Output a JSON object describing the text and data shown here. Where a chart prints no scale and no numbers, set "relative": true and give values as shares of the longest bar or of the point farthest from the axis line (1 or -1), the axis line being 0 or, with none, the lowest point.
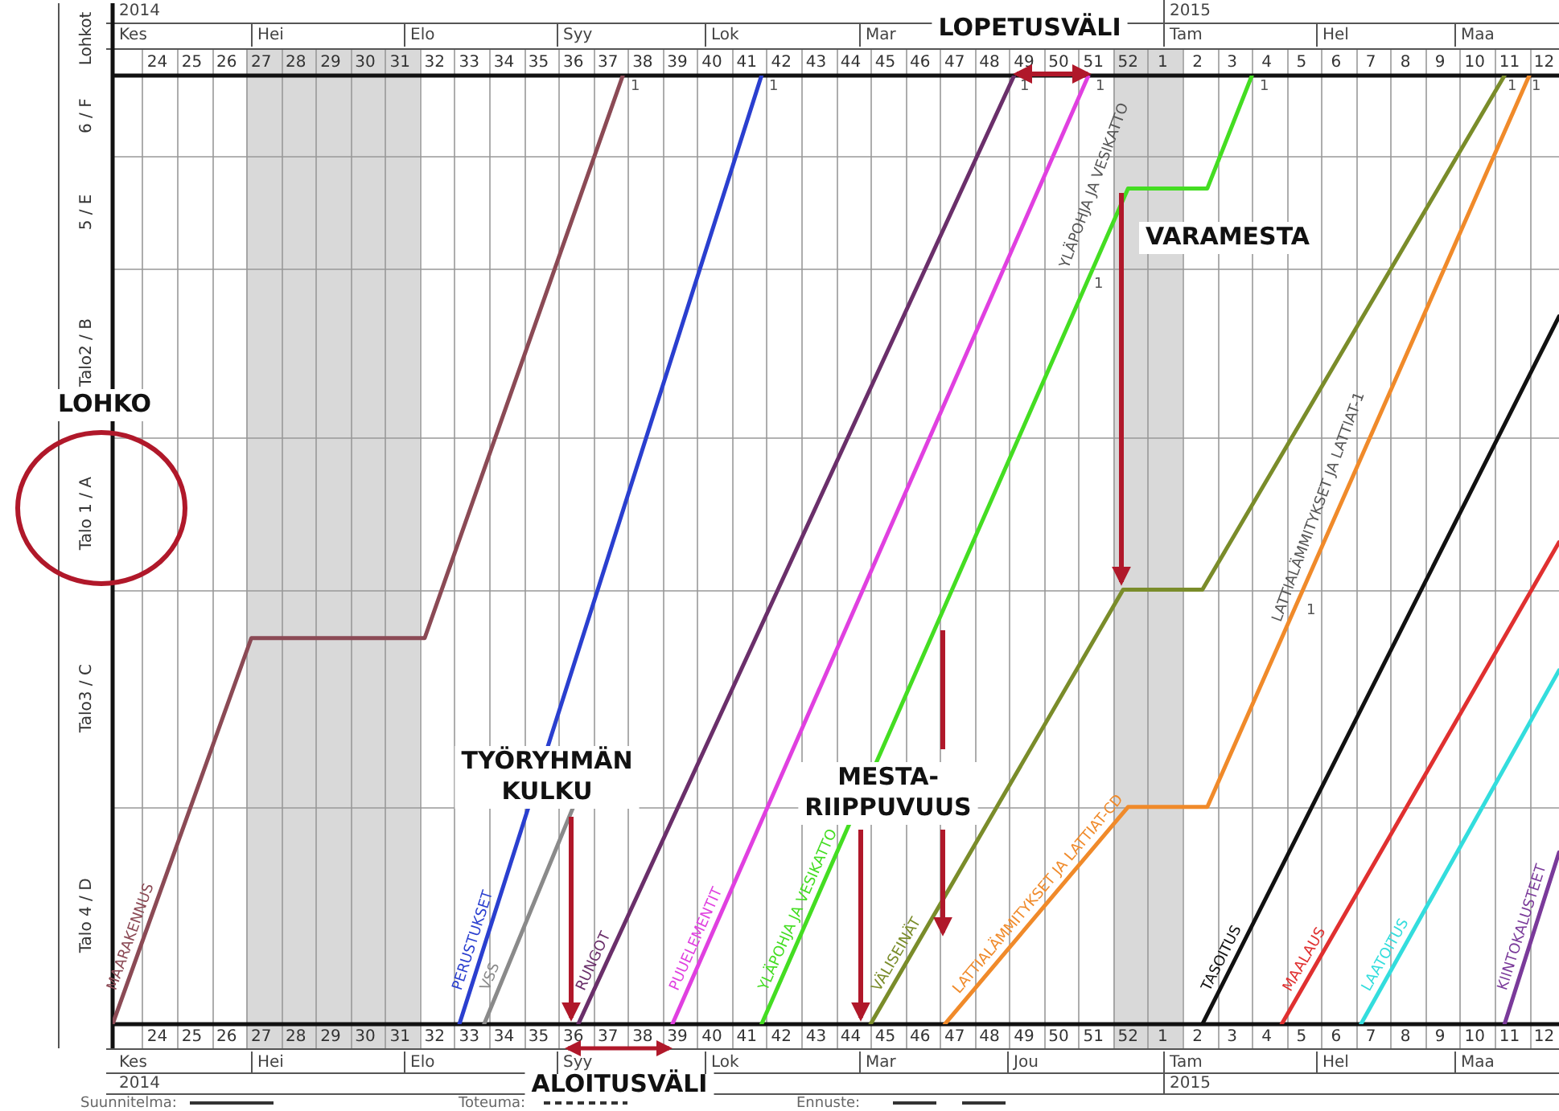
{
  "chart_data": {
    "type": "line",
    "ylabel": "Lohkot",
    "relative": true,
    "xlim": [
      "2014-06-03",
      "2015-03-22"
    ],
    "x2lim": [
      "2014-06-03",
      "2015-03-22"
    ],
    "xticks": [
      {
        "value": "2014-06-12",
        "label": "24"
      },
      {
        "value": "2014-06-19",
        "label": "25"
      },
      {
        "value": "2014-06-26",
        "label": "26"
      },
      {
        "value": "2014-07-03",
        "label": "27"
      },
      {
        "value": "2014-07-10",
        "label": "28"
      },
      {
        "value": "2014-07-17",
        "label": "29"
      },
      {
        "value": "2014-07-24",
        "label": "30"
      },
      {
        "value": "2014-07-31",
        "label": "31"
      },
      {
        "value": "2014-08-07",
        "label": "32"
      },
      {
        "value": "2014-08-14",
        "label": "33"
      },
      {
        "value": "2014-08-21",
        "label": "34"
      },
      {
        "value": "2014-08-28",
        "label": "35"
      },
      {
        "value": "2014-09-04",
        "label": "36"
      },
      {
        "value": "2014-09-11",
        "label": "37"
      },
      {
        "value": "2014-09-18",
        "label": "38"
      },
      {
        "value": "2014-09-25",
        "label": "39"
      },
      {
        "value": "2014-10-02",
        "label": "40"
      },
      {
        "value": "2014-10-09",
        "label": "41"
      },
      {
        "value": "2014-10-16",
        "label": "42"
      },
      {
        "value": "2014-10-23",
        "label": "43"
      },
      {
        "value": "2014-10-30",
        "label": "44"
      },
      {
        "value": "2014-11-06",
        "label": "45"
      },
      {
        "value": "2014-11-13",
        "label": "46"
      },
      {
        "value": "2014-11-20",
        "label": "47"
      },
      {
        "value": "2014-11-27",
        "label": "48"
      },
      {
        "value": "2014-12-04",
        "label": "49"
      },
      {
        "value": "2014-12-11",
        "label": "50"
      },
      {
        "value": "2014-12-18",
        "label": "51"
      },
      {
        "value": "2014-12-25",
        "label": "52"
      },
      {
        "value": "2015-01-01",
        "label": "1"
      },
      {
        "value": "2015-01-08",
        "label": "2"
      },
      {
        "value": "2015-01-15",
        "label": "3"
      },
      {
        "value": "2015-01-22",
        "label": "4"
      },
      {
        "value": "2015-01-29",
        "label": "5"
      },
      {
        "value": "2015-02-05",
        "label": "6"
      },
      {
        "value": "2015-02-12",
        "label": "7"
      },
      {
        "value": "2015-02-19",
        "label": "8"
      },
      {
        "value": "2015-02-26",
        "label": "9"
      },
      {
        "value": "2015-03-05",
        "label": "10"
      },
      {
        "value": "2015-03-12",
        "label": "11"
      },
      {
        "value": "2015-03-19",
        "label": "12"
      },
      {
        "value": "2014-06-09",
        "label": null
      },
      {
        "value": "2014-06-16",
        "label": null
      },
      {
        "value": "2014-06-23",
        "label": null
      },
      {
        "value": "2014-06-30",
        "label": null
      },
      {
        "value": "2014-07-07",
        "label": null
      },
      {
        "value": "2014-07-14",
        "label": null
      },
      {
        "value": "2014-07-21",
        "label": null
      },
      {
        "value": "2014-07-28",
        "label": null
      },
      {
        "value": "2014-08-04",
        "label": null
      },
      {
        "value": "2014-08-11",
        "label": null
      },
      {
        "value": "2014-08-18",
        "label": null
      },
      {
        "value": "2014-08-25",
        "label": null
      },
      {
        "value": "2014-09-01",
        "label": null
      },
      {
        "value": "2014-09-08",
        "label": null
      },
      {
        "value": "2014-09-15",
        "label": null
      },
      {
        "value": "2014-09-22",
        "label": null
      },
      {
        "value": "2014-09-29",
        "label": null
      },
      {
        "value": "2014-10-06",
        "label": null
      },
      {
        "value": "2014-10-13",
        "label": null
      },
      {
        "value": "2014-10-20",
        "label": null
      },
      {
        "value": "2014-10-27",
        "label": null
      },
      {
        "value": "2014-11-03",
        "label": null
      },
      {
        "value": "2014-11-10",
        "label": null
      },
      {
        "value": "2014-11-17",
        "label": null
      },
      {
        "value": "2014-11-24",
        "label": null
      },
      {
        "value": "2014-12-01",
        "label": null
      },
      {
        "value": "2014-12-08",
        "label": null
      },
      {
        "value": "2014-12-15",
        "label": null
      },
      {
        "value": "2014-12-22",
        "label": null
      },
      {
        "value": "2014-12-29",
        "label": null
      },
      {
        "value": "2015-01-05",
        "label": null
      },
      {
        "value": "2015-01-12",
        "label": null
      },
      {
        "value": "2015-01-19",
        "label": null
      },
      {
        "value": "2015-01-26",
        "label": null
      },
      {
        "value": "2015-02-02",
        "label": null
      },
      {
        "value": "2015-02-09",
        "label": null
      },
      {
        "value": "2015-02-16",
        "label": null
      },
      {
        "value": "2015-02-23",
        "label": null
      },
      {
        "value": "2015-03-02",
        "label": null
      },
      {
        "value": "2015-03-09",
        "label": null
      },
      {
        "value": "2015-03-16",
        "label": null
      }
    ],
    "x2ticks": [
      {
        "value": "2014-06-12",
        "label": "24"
      },
      {
        "value": "2014-06-19",
        "label": "25"
      },
      {
        "value": "2014-06-26",
        "label": "26"
      },
      {
        "value": "2014-07-03",
        "label": "27"
      },
      {
        "value": "2014-07-10",
        "label": "28"
      },
      {
        "value": "2014-07-17",
        "label": "29"
      },
      {
        "value": "2014-07-24",
        "label": "30"
      },
      {
        "value": "2014-07-31",
        "label": "31"
      },
      {
        "value": "2014-08-07",
        "label": "32"
      },
      {
        "value": "2014-08-14",
        "label": "33"
      },
      {
        "value": "2014-08-21",
        "label": "34"
      },
      {
        "value": "2014-08-28",
        "label": "35"
      },
      {
        "value": "2014-09-04",
        "label": "36"
      },
      {
        "value": "2014-09-11",
        "label": "37"
      },
      {
        "value": "2014-09-18",
        "label": "38"
      },
      {
        "value": "2014-09-25",
        "label": "39"
      },
      {
        "value": "2014-10-02",
        "label": "40"
      },
      {
        "value": "2014-10-09",
        "label": "41"
      },
      {
        "value": "2014-10-16",
        "label": "42"
      },
      {
        "value": "2014-10-23",
        "label": "43"
      },
      {
        "value": "2014-10-30",
        "label": "44"
      },
      {
        "value": "2014-11-06",
        "label": "45"
      },
      {
        "value": "2014-11-13",
        "label": "46"
      },
      {
        "value": "2014-11-20",
        "label": "47"
      },
      {
        "value": "2014-11-27",
        "label": "48"
      },
      {
        "value": "2014-12-04",
        "label": "49"
      },
      {
        "value": "2014-12-11",
        "label": "50"
      },
      {
        "value": "2014-12-18",
        "label": "51"
      },
      {
        "value": "2014-12-25",
        "label": "52"
      },
      {
        "value": "2015-01-01",
        "label": "1"
      },
      {
        "value": "2015-01-08",
        "label": "2"
      },
      {
        "value": "2015-01-15",
        "label": "3"
      },
      {
        "value": "2015-01-22",
        "label": "4"
      },
      {
        "value": "2015-01-29",
        "label": "5"
      },
      {
        "value": "2015-02-05",
        "label": "6"
      },
      {
        "value": "2015-02-12",
        "label": "7"
      },
      {
        "value": "2015-02-19",
        "label": "8"
      },
      {
        "value": "2015-02-26",
        "label": "9"
      },
      {
        "value": "2015-03-05",
        "label": "10"
      },
      {
        "value": "2015-03-12",
        "label": "11"
      },
      {
        "value": "2015-03-19",
        "label": "12"
      }
    ],
    "y_categories": [
      "6 / F",
      "5 / E",
      "Talo2 / B",
      "Talo 1 / A",
      "Talo3 / C",
      "Talo 4 / D"
    ],
    "ref_lines": [
      {
        "axis": "y",
        "value": 0.915,
        "color": "#999999"
      },
      {
        "axis": "y",
        "value": 0.797,
        "color": "#999999"
      },
      {
        "axis": "y",
        "value": 0.619,
        "color": "#999999"
      },
      {
        "axis": "y",
        "value": 0.458,
        "color": "#999999"
      },
      {
        "axis": "y",
        "value": 0.229,
        "color": "#999999"
      }
    ],
    "grid": "x",
    "legend": false,
    "marker": "none",
    "line_style": "solid",
    "bands": [
      {
        "axis": "x",
        "from": "2014-06-30",
        "to": "2014-08-04",
        "color": "#d9d9d9"
      },
      {
        "axis": "x",
        "from": "2014-12-22",
        "to": "2015-01-05",
        "color": "#d9d9d9"
      }
    ],
    "series": [
      {
        "name": "MAARAKENNUS",
        "color": "#8b4a55",
        "x": [
          "2014-06-03",
          "2014-07-01",
          "2014-08-05",
          "2014-09-14"
        ],
        "values": [
          0,
          0.407,
          0.407,
          1
        ]
      },
      {
        "name": "PERUSTUKSET",
        "color": "#2a3fcf",
        "x": [
          "2014-08-12",
          "2014-10-12"
        ],
        "values": [
          0,
          1
        ]
      },
      {
        "name": "VSS",
        "color": "#8a8a8a",
        "x": [
          "2014-08-17",
          "2014-09-04"
        ],
        "values": [
          0,
          0.229
        ]
      },
      {
        "name": "RUNGOT",
        "color": "#6a2f6a",
        "x": [
          "2014-09-05",
          "2014-12-02"
        ],
        "values": [
          0,
          1
        ]
      },
      {
        "name": "PUUELEMENTIT",
        "color": "#e040e0",
        "x": [
          "2014-09-24",
          "2014-12-17"
        ],
        "values": [
          0,
          1
        ]
      },
      {
        "name": "YLÄPOHJA JA VESIKATTO",
        "color": "#44dd22",
        "x": [
          "2014-10-12",
          "2014-12-25",
          "2015-01-10",
          "2015-01-19"
        ],
        "values": [
          0,
          0.881,
          0.881,
          1
        ]
      },
      {
        "name": "VÄLISEINÄT",
        "color": "#7a8c2a",
        "x": [
          "2014-11-03",
          "2014-12-24",
          "2015-01-09",
          "2015-03-11"
        ],
        "values": [
          0,
          0.458,
          0.458,
          1
        ]
      },
      {
        "name": "LATTIALÄMMITYKSET JA LATTIAT-CD",
        "color": "#f08a2a",
        "x": [
          "2014-11-18",
          "2014-12-25",
          "2015-01-10",
          "2015-03-16"
        ],
        "values": [
          0,
          0.229,
          0.229,
          1
        ]
      },
      {
        "name": "TASOITUS",
        "color": "#111111",
        "x": [
          "2015-01-09",
          "2015-03-22"
        ],
        "values": [
          0,
          0.746
        ]
      },
      {
        "name": "MAALAUS",
        "color": "#e03030",
        "x": [
          "2015-01-25",
          "2015-03-22"
        ],
        "values": [
          0,
          0.508
        ]
      },
      {
        "name": "LAATOITUS",
        "color": "#33dddd",
        "x": [
          "2015-02-10",
          "2015-03-22"
        ],
        "values": [
          0,
          0.373
        ]
      },
      {
        "name": "KIINTOKALUSTEET",
        "color": "#7a3a9a",
        "x": [
          "2015-03-11",
          "2015-03-22"
        ],
        "values": [
          0,
          0.181
        ]
      }
    ],
    "annotations": [
      "LOHKO",
      "LOPETUSVÄLI",
      "VARAMESTA",
      "TYÖRYHMÄN KULKU",
      "MESTA-RIIPPUVUUS",
      "ALOITUSVÄLI",
      "Suunnitelma:",
      "Toteuma:",
      "Ennuste:",
      "YLÄPOHJA JA VESIKATTO",
      "LATTIALÄMMITYKSET JA LATTIAT-1",
      "1",
      "1",
      "1",
      "1",
      "1",
      "1",
      "1",
      "1",
      "1",
      "2014",
      "2015",
      "Kes",
      "Hei",
      "Elo",
      "Syy",
      "Lok",
      "Mar",
      "Tam",
      "Hel",
      "Maa",
      "Kes",
      "Hei",
      "Elo",
      "Syy",
      "Lok",
      "Mar",
      "Jou",
      "Tam",
      "Hel",
      "Maa",
      "2014",
      "2015"
    ]
  }
}
